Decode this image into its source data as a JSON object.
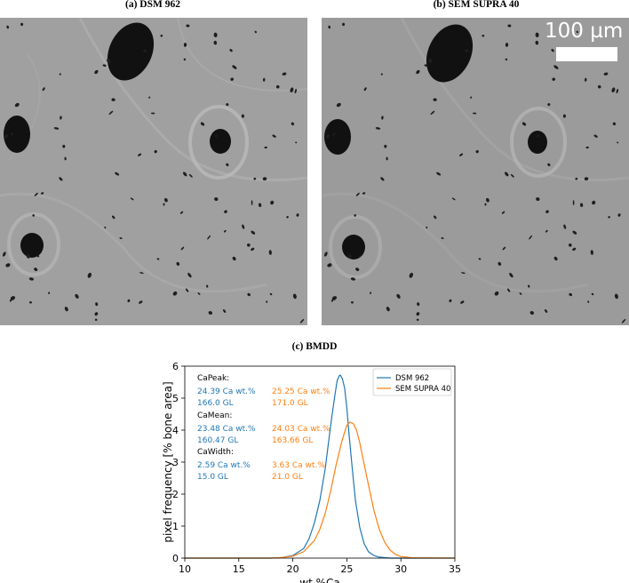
{
  "panels": {
    "a": {
      "title": "(a) DSM 962"
    },
    "b": {
      "title": "(b) SEM SUPRA 40",
      "scale_bar": "100 µm"
    },
    "c": {
      "title": "(c) BMDD"
    }
  },
  "chart_data": {
    "type": "line",
    "xlabel": "wt.%Ca",
    "ylabel": "pixel frequency [% bone area]",
    "xlim": [
      10,
      35
    ],
    "ylim": [
      0,
      6
    ],
    "xticks": [
      10,
      15,
      20,
      25,
      30,
      35
    ],
    "yticks": [
      0,
      1,
      2,
      3,
      4,
      5,
      6
    ],
    "grid": false,
    "legend_position": "top-right",
    "series": [
      {
        "name": "DSM 962",
        "color": "#1f77b4",
        "x": [
          10,
          18,
          19,
          20,
          21,
          21.5,
          22,
          22.5,
          23,
          23.3,
          23.6,
          23.9,
          24.1,
          24.3,
          24.4,
          24.6,
          24.8,
          25.0,
          25.2,
          25.5,
          25.8,
          26.2,
          26.6,
          27.0,
          27.5,
          28,
          29,
          35
        ],
        "y": [
          0,
          0,
          0.02,
          0.08,
          0.3,
          0.6,
          1.1,
          1.8,
          2.8,
          3.6,
          4.4,
          5.1,
          5.55,
          5.7,
          5.72,
          5.6,
          5.3,
          4.7,
          3.9,
          2.8,
          1.8,
          0.95,
          0.45,
          0.2,
          0.08,
          0.03,
          0,
          0
        ]
      },
      {
        "name": "SEM SUPRA 40",
        "color": "#ff7f0e",
        "x": [
          10,
          18,
          19,
          20,
          21,
          22,
          22.5,
          23,
          23.5,
          24,
          24.5,
          24.8,
          25.0,
          25.3,
          25.6,
          25.9,
          26.2,
          26.5,
          27,
          27.5,
          28,
          28.5,
          29,
          29.5,
          30,
          31,
          35
        ],
        "y": [
          0,
          0,
          0.02,
          0.06,
          0.2,
          0.55,
          0.9,
          1.4,
          2.1,
          2.9,
          3.6,
          3.95,
          4.15,
          4.25,
          4.2,
          4.0,
          3.6,
          3.1,
          2.3,
          1.5,
          0.9,
          0.5,
          0.25,
          0.12,
          0.05,
          0.01,
          0
        ]
      }
    ],
    "annotations": {
      "CaPeak": {
        "label": "CaPeak:",
        "dsm": [
          "24.39 Ca wt.%",
          "166.0 GL"
        ],
        "sem": [
          "25.25 Ca wt.%",
          "171.0 GL"
        ]
      },
      "CaMean": {
        "label": "CaMean:",
        "dsm": [
          "23.48 Ca wt.%",
          "160.47 GL"
        ],
        "sem": [
          "24.03 Ca wt.%",
          "163.66 GL"
        ]
      },
      "CaWidth": {
        "label": "CaWidth:",
        "dsm": [
          "2.59 Ca wt.%",
          "15.0 GL"
        ],
        "sem": [
          "3.63 Ca wt.%",
          "21.0 GL"
        ]
      }
    }
  }
}
